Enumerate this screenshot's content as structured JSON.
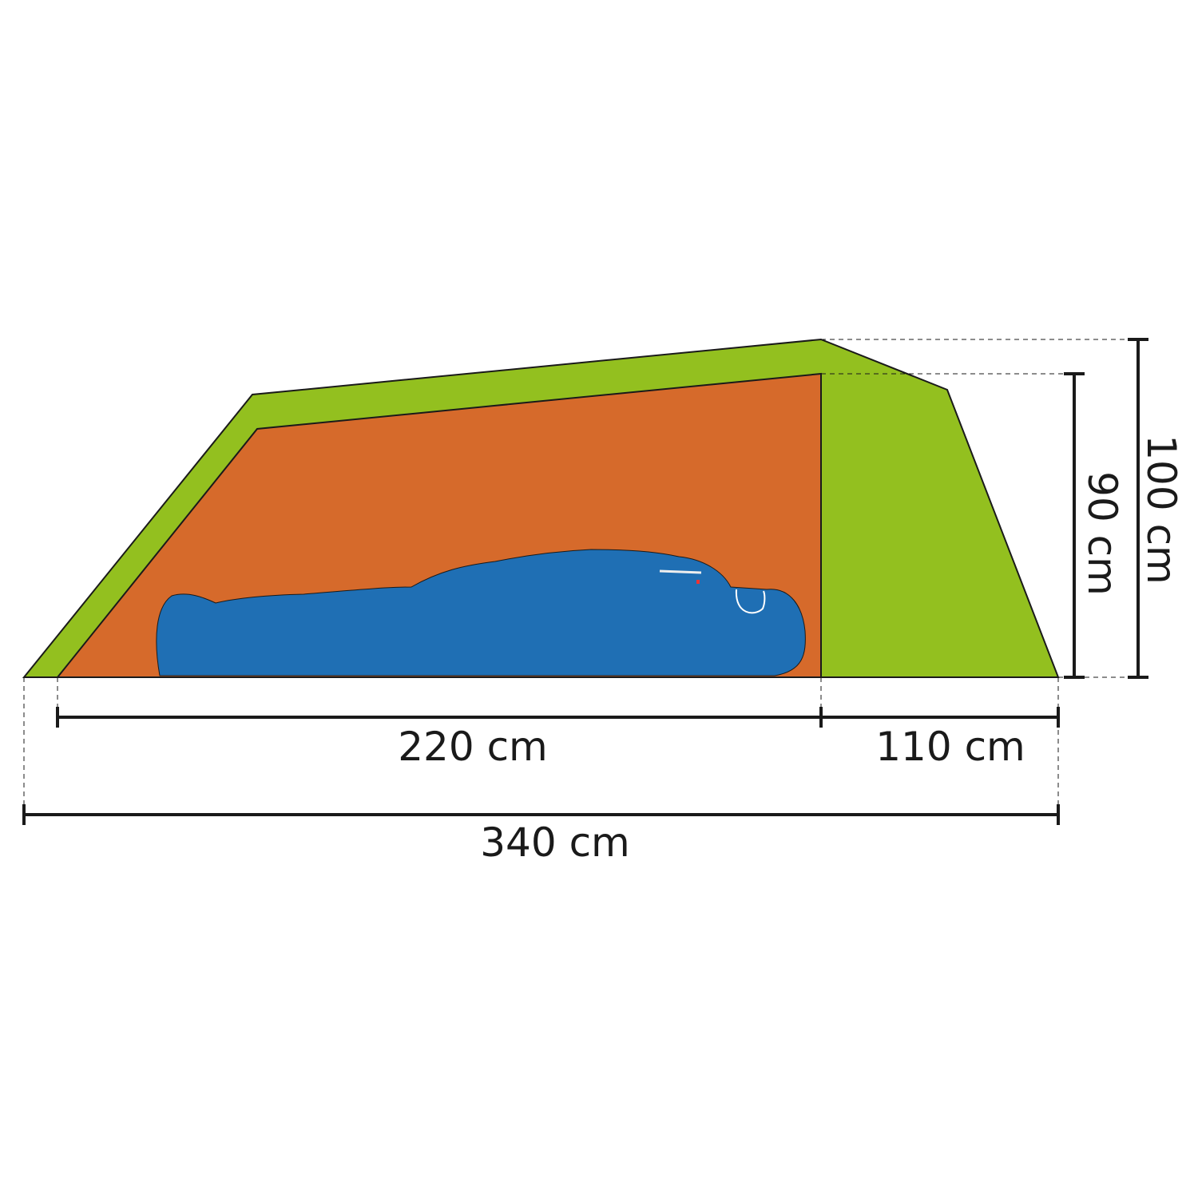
{
  "colors": {
    "fly": "#93c01f",
    "inner": "#d66a2b",
    "sleeping_bag": "#1f6fb4",
    "line": "#1a1a1a"
  },
  "dimensions": {
    "inner_length": "220 cm",
    "vestibule_length": "110 cm",
    "total_length": "340 cm",
    "inner_height": "90 cm",
    "total_height": "100 cm"
  }
}
